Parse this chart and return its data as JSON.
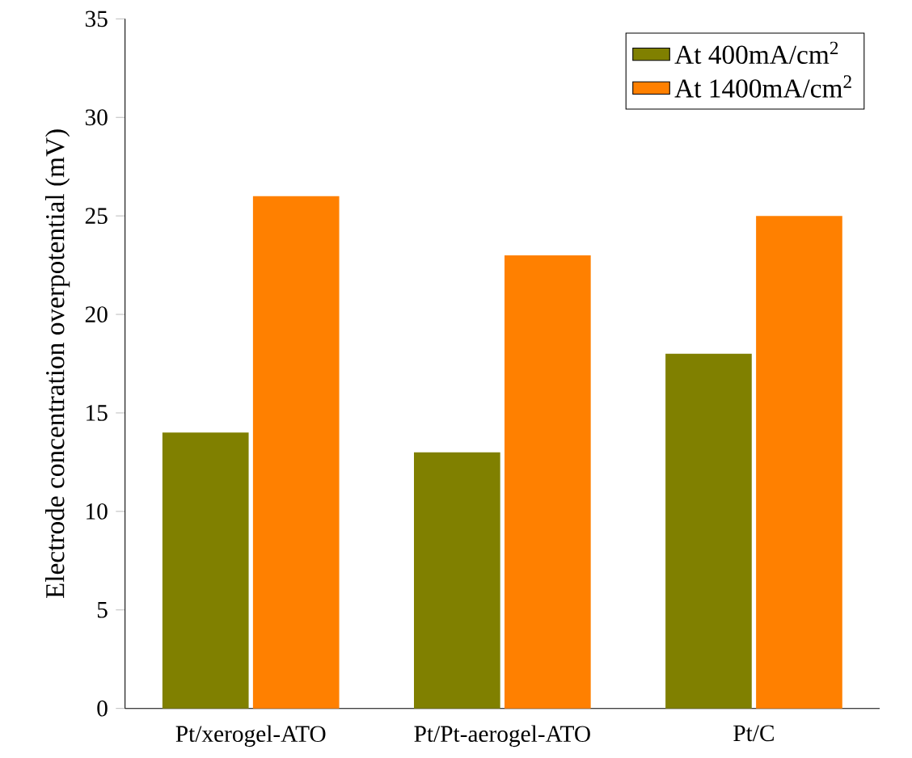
{
  "chart_data": {
    "type": "bar",
    "ylabel": "Electrode concentration overpotential (mV)",
    "categories": [
      "Pt/xerogel-ATO",
      "Pt/Pt-aerogel-ATO",
      "Pt/C"
    ],
    "series": [
      {
        "name": "At 400mA/cm$^{2}$",
        "color": "#808000",
        "values": [
          14,
          13,
          18
        ]
      },
      {
        "name": "At 1400mA/cm$^{2}$",
        "color": "#ff8000",
        "values": [
          26,
          23,
          25
        ]
      }
    ],
    "ylim": [
      0,
      35
    ],
    "yticks": [
      0,
      5,
      10,
      15,
      20,
      25,
      30,
      35
    ],
    "legend": "top right",
    "grid": false
  }
}
